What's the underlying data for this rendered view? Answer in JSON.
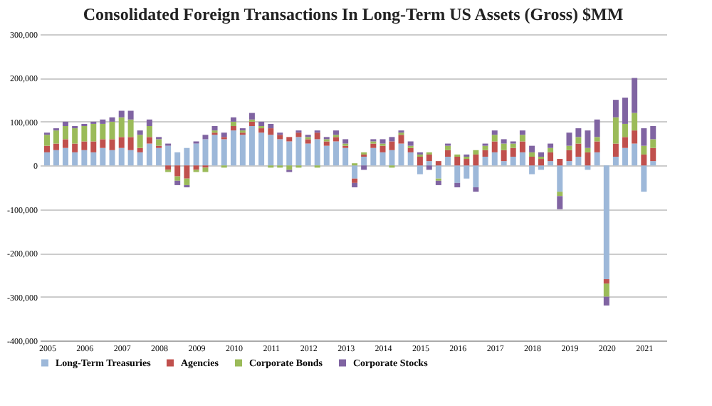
{
  "chart_data": {
    "type": "bar",
    "title": "Consolidated Foreign Transactions In Long-Term US Assets (Gross) $MM",
    "stacked": true,
    "grid": "y",
    "legend": "bottom",
    "x": [
      "2005-01",
      "2005-04",
      "2005-07",
      "2005-10",
      "2006-01",
      "2006-04",
      "2006-07",
      "2006-10",
      "2007-01",
      "2007-04",
      "2007-07",
      "2007-10",
      "2008-01",
      "2008-04",
      "2008-07",
      "2008-10",
      "2009-01",
      "2009-04",
      "2009-07",
      "2009-10",
      "2010-01",
      "2010-04",
      "2010-07",
      "2010-10",
      "2011-01",
      "2011-04",
      "2011-07",
      "2011-10",
      "2012-01",
      "2012-04",
      "2012-07",
      "2012-10",
      "2013-01",
      "2013-04",
      "2013-07",
      "2013-10",
      "2014-01",
      "2014-04",
      "2014-07",
      "2014-10",
      "2015-01",
      "2015-04",
      "2015-07",
      "2015-10",
      "2016-01",
      "2016-04",
      "2016-07",
      "2016-10",
      "2017-01",
      "2017-04",
      "2017-07",
      "2017-10",
      "2018-01",
      "2018-04",
      "2018-07",
      "2018-10",
      "2019-01",
      "2019-04",
      "2019-07",
      "2019-10",
      "2020-01",
      "2020-04",
      "2020-07",
      "2020-10",
      "2021-01",
      "2021-04"
    ],
    "xlim": [
      "2005-01",
      "2021-06"
    ],
    "xticks": [
      "2005",
      "2006",
      "2007",
      "2008",
      "2009",
      "2010",
      "2011",
      "2012",
      "2013",
      "2014",
      "2015",
      "2016",
      "2017",
      "2018",
      "2019",
      "2020",
      "2021"
    ],
    "ylim": [
      -400000,
      300000
    ],
    "yticks": [
      {
        "value": -400000,
        "label": "-400,000"
      },
      {
        "value": -300000,
        "label": "-300,000"
      },
      {
        "value": -200000,
        "label": "-200,000"
      },
      {
        "value": -100000,
        "label": "-100,000"
      },
      {
        "value": 0,
        "label": "0"
      },
      {
        "value": 100000,
        "label": "100,000"
      },
      {
        "value": 200000,
        "label": "200,000"
      },
      {
        "value": 300000,
        "label": "300,000"
      }
    ],
    "series": [
      {
        "name": "Long-Term Treasuries",
        "color": "#9db8d9",
        "values": [
          30000,
          35000,
          40000,
          30000,
          35000,
          30000,
          40000,
          35000,
          40000,
          35000,
          30000,
          50000,
          40000,
          45000,
          30000,
          40000,
          50000,
          60000,
          70000,
          60000,
          80000,
          70000,
          90000,
          75000,
          70000,
          60000,
          55000,
          65000,
          50000,
          60000,
          45000,
          55000,
          40000,
          -30000,
          20000,
          40000,
          30000,
          35000,
          50000,
          30000,
          -20000,
          10000,
          -30000,
          20000,
          -40000,
          -30000,
          -50000,
          20000,
          30000,
          10000,
          20000,
          30000,
          -20000,
          -10000,
          10000,
          -60000,
          10000,
          20000,
          -10000,
          30000,
          -260000,
          20000,
          40000,
          50000,
          -60000,
          10000
        ]
      },
      {
        "name": "Agencies",
        "color": "#c0504d",
        "values": [
          15000,
          15000,
          20000,
          20000,
          20000,
          25000,
          20000,
          25000,
          25000,
          30000,
          10000,
          15000,
          5000,
          -10000,
          -25000,
          -30000,
          -10000,
          -5000,
          5000,
          5000,
          10000,
          5000,
          10000,
          10000,
          15000,
          10000,
          10000,
          10000,
          10000,
          15000,
          10000,
          10000,
          5000,
          -10000,
          5000,
          10000,
          15000,
          20000,
          20000,
          10000,
          20000,
          15000,
          10000,
          15000,
          20000,
          15000,
          25000,
          15000,
          25000,
          25000,
          20000,
          25000,
          20000,
          15000,
          20000,
          15000,
          25000,
          30000,
          30000,
          25000,
          -10000,
          30000,
          25000,
          30000,
          25000,
          30000
        ]
      },
      {
        "name": "Corporate Bonds",
        "color": "#9bbb59",
        "values": [
          25000,
          30000,
          30000,
          35000,
          35000,
          40000,
          35000,
          40000,
          45000,
          40000,
          30000,
          25000,
          15000,
          -5000,
          -10000,
          -15000,
          -5000,
          -10000,
          5000,
          -5000,
          10000,
          5000,
          5000,
          5000,
          -5000,
          -5000,
          -10000,
          -5000,
          5000,
          -5000,
          5000,
          5000,
          5000,
          5000,
          5000,
          5000,
          5000,
          -5000,
          5000,
          5000,
          5000,
          5000,
          -5000,
          10000,
          5000,
          5000,
          10000,
          10000,
          15000,
          15000,
          10000,
          15000,
          10000,
          5000,
          10000,
          -10000,
          10000,
          15000,
          10000,
          10000,
          -30000,
          60000,
          30000,
          40000,
          20000,
          20000
        ]
      },
      {
        "name": "Corporate Stocks",
        "color": "#8064a2",
        "values": [
          5000,
          5000,
          10000,
          5000,
          5000,
          5000,
          10000,
          10000,
          15000,
          20000,
          10000,
          15000,
          5000,
          5000,
          -10000,
          -5000,
          5000,
          10000,
          10000,
          10000,
          10000,
          5000,
          15000,
          10000,
          10000,
          5000,
          -5000,
          5000,
          5000,
          5000,
          5000,
          10000,
          10000,
          -10000,
          -10000,
          5000,
          10000,
          10000,
          5000,
          10000,
          5000,
          -10000,
          -10000,
          5000,
          -10000,
          5000,
          -10000,
          5000,
          10000,
          10000,
          5000,
          10000,
          15000,
          10000,
          10000,
          -30000,
          30000,
          20000,
          40000,
          40000,
          -20000,
          40000,
          60000,
          80000,
          40000,
          30000
        ]
      }
    ]
  }
}
